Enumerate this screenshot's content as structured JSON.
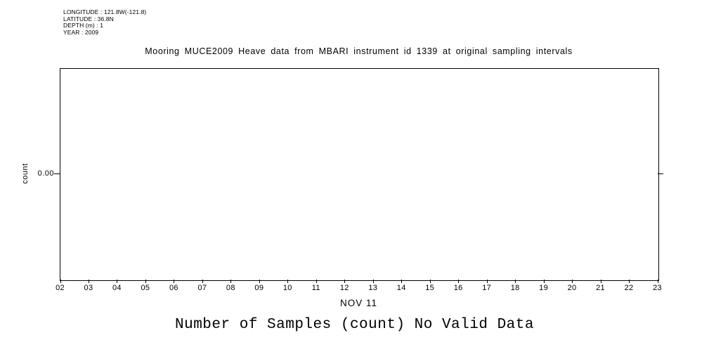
{
  "header": {
    "lines": [
      "LONGITUDE : 121.8W(-121.8)",
      "LATITUDE : 36.8N",
      "DEPTH (m) : 1",
      "YEAR : 2009"
    ]
  },
  "chart_data": {
    "type": "line",
    "title": "Mooring MUCE2009 Heave data from MBARI instrument id 1339 at original sampling intervals",
    "xlabel": "NOV 11",
    "ylabel": "count",
    "x_tick_labels": [
      "02",
      "03",
      "04",
      "05",
      "06",
      "07",
      "08",
      "09",
      "10",
      "11",
      "12",
      "13",
      "14",
      "15",
      "16",
      "17",
      "18",
      "19",
      "20",
      "21",
      "22",
      "23"
    ],
    "y_tick_labels": [
      "0.00"
    ],
    "series": [],
    "no_data": true,
    "caption": "Number of Samples (count) No Valid Data",
    "grid": false,
    "legend": false,
    "frame_color": "#000000",
    "background_color": "#ffffff"
  }
}
